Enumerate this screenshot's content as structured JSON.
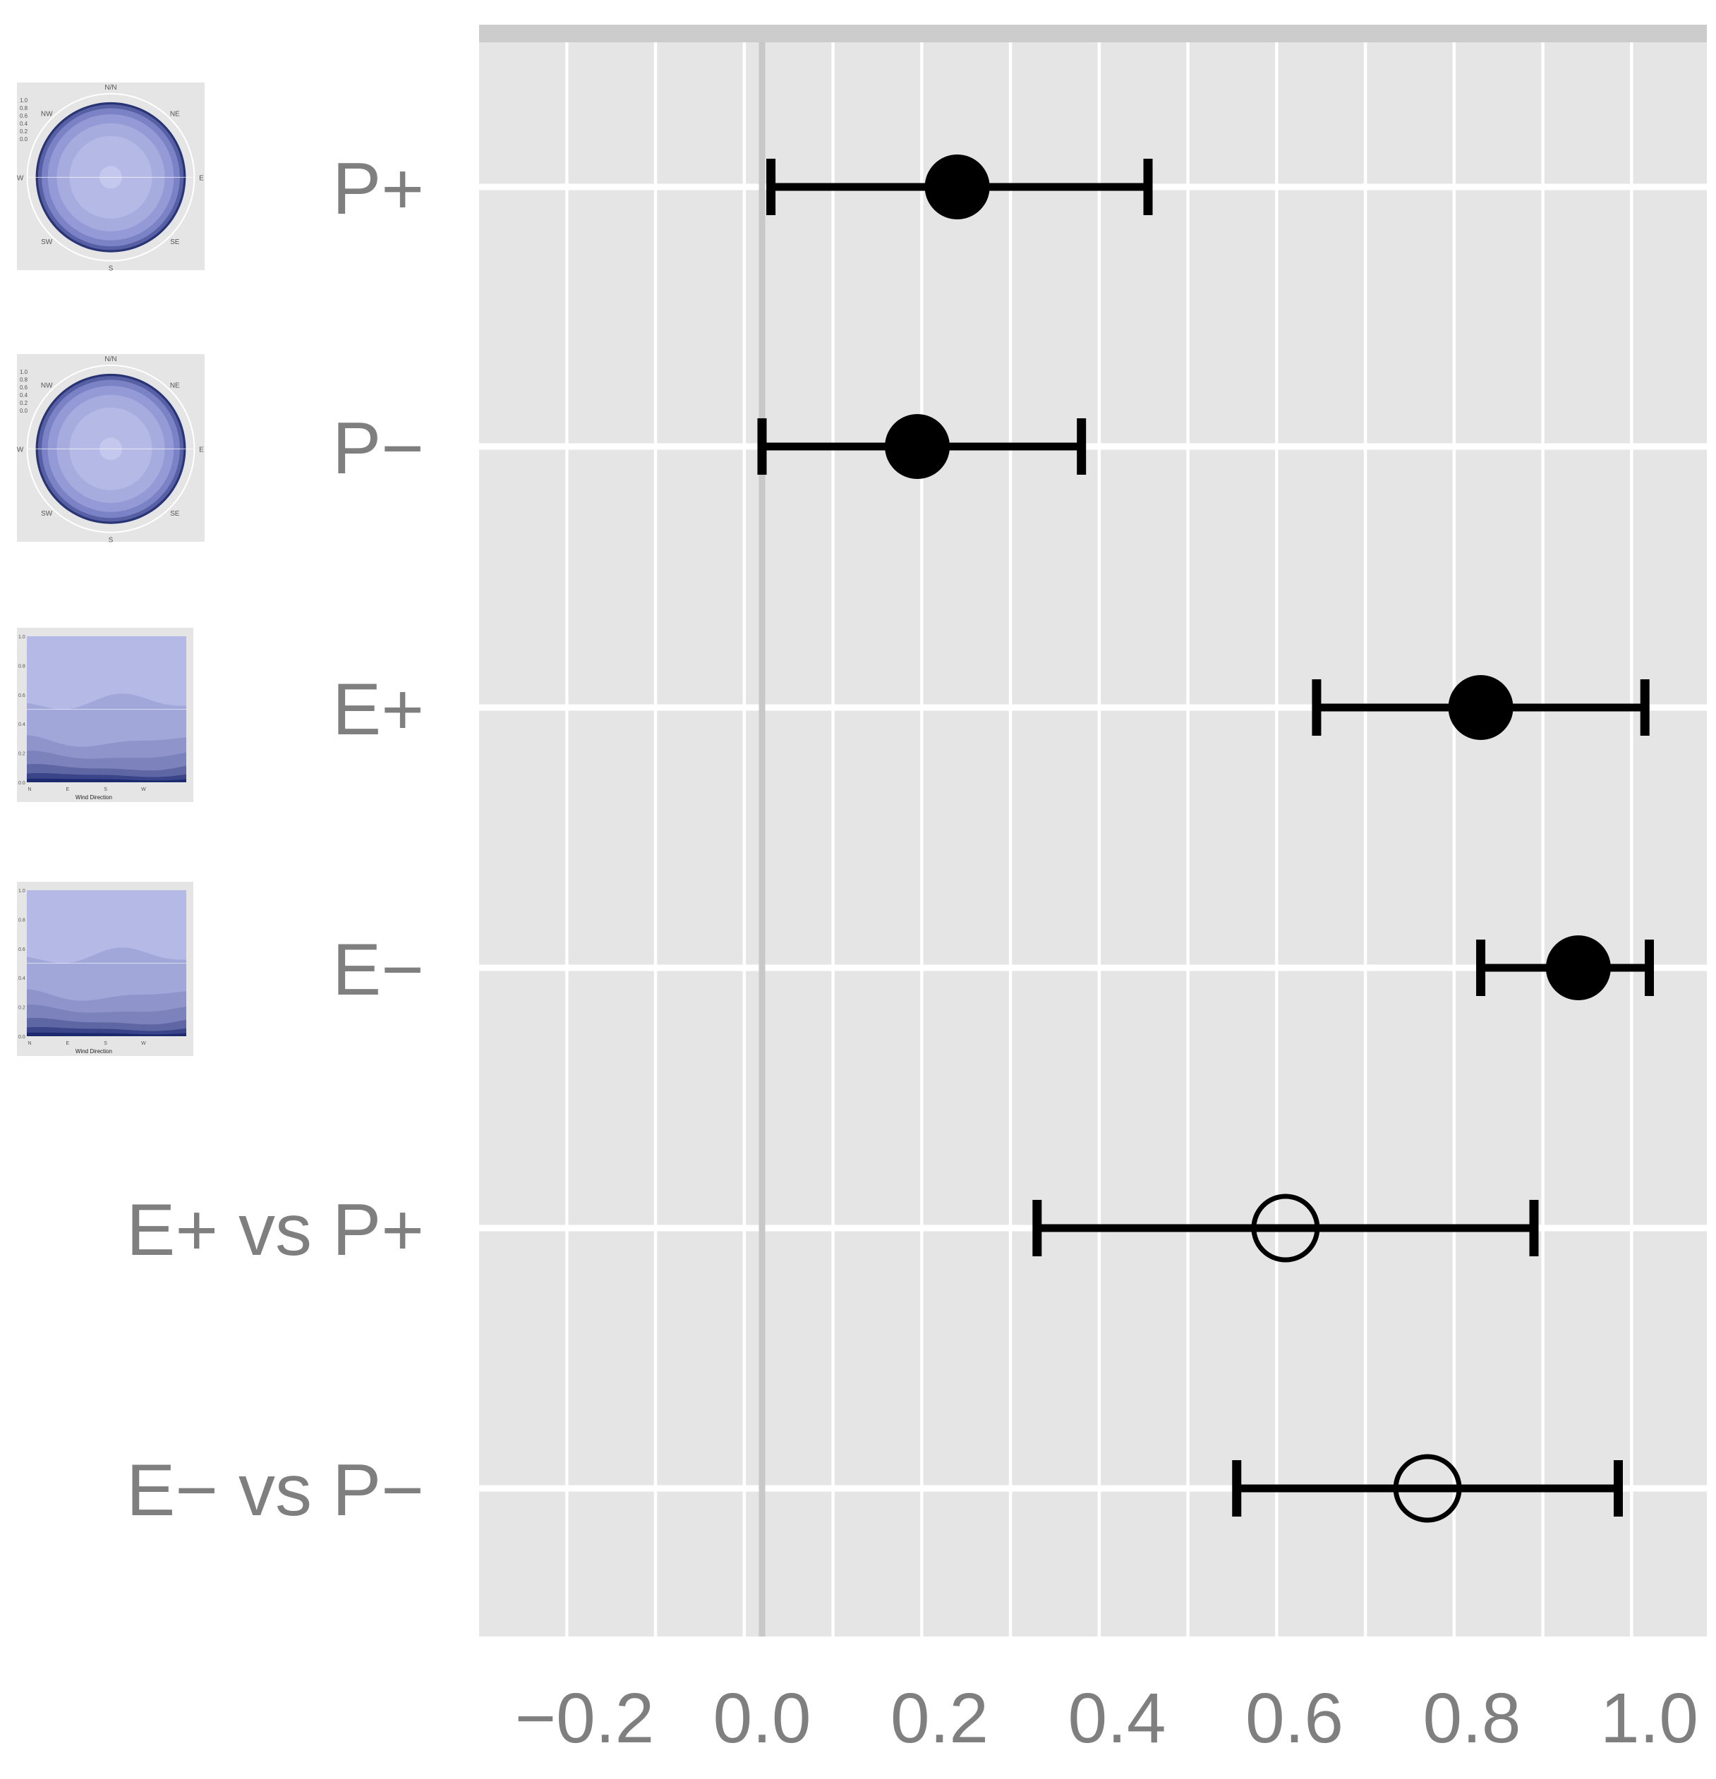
{
  "chart_data": {
    "type": "scatter",
    "subtype": "point-range",
    "title": "",
    "xlabel": "",
    "ylabel": "",
    "xlim": [
      -0.32,
      1.06
    ],
    "x_ticks": [
      -0.2,
      0.0,
      0.2,
      0.4,
      0.6,
      0.8,
      1.0
    ],
    "x_tick_labels": [
      "−0.2",
      "0.0",
      "0.2",
      "0.4",
      "0.6",
      "0.8",
      "1.0"
    ],
    "reference_line_x": 0.0,
    "grid": true,
    "legend": "none",
    "categories": [
      "P+",
      "P−",
      "E+",
      "E−",
      "E+ vs P+",
      "E− vs P−"
    ],
    "points": [
      {
        "label": "P+",
        "estimate": 0.22,
        "low": 0.01,
        "high": 0.435,
        "marker": "filled",
        "thumbnail": "polar-wind-rose"
      },
      {
        "label": "P−",
        "estimate": 0.175,
        "low": 0.0,
        "high": 0.36,
        "marker": "filled",
        "thumbnail": "polar-wind-rose"
      },
      {
        "label": "E+",
        "estimate": 0.81,
        "low": 0.625,
        "high": 0.995,
        "marker": "filled",
        "thumbnail": "stacked-area-wind-direction"
      },
      {
        "label": "E−",
        "estimate": 0.92,
        "low": 0.81,
        "high": 1.0,
        "marker": "filled",
        "thumbnail": "stacked-area-wind-direction"
      },
      {
        "label": "E+ vs P+",
        "estimate": 0.59,
        "low": 0.31,
        "high": 0.87,
        "marker": "hollow"
      },
      {
        "label": "E− vs P−",
        "estimate": 0.75,
        "low": 0.535,
        "high": 0.965,
        "marker": "hollow"
      }
    ],
    "colors": {
      "panel": "#e5e5e5",
      "strip": "#cccccc",
      "grid_major": "#ffffff",
      "reference_line": "#c8c8c8",
      "marks": "#000000",
      "labels": "#7f7f7f",
      "thumb_fill": "#b4b9e6",
      "thumb_dark": "#1e2a6e"
    }
  },
  "thumbnails": {
    "polar": {
      "compass": [
        "N/N",
        "NE",
        "E",
        "SE",
        "S",
        "SW",
        "W",
        "NW"
      ],
      "radial_ticks": [
        "1.0",
        "0.8",
        "0.6",
        "0.4",
        "0.2",
        "0.0"
      ]
    },
    "area": {
      "xlabel": "Wind Direction",
      "x_ticks": [
        "N",
        "E",
        "S",
        "W"
      ],
      "y_ticks": [
        "1.0",
        "0.8",
        "0.6",
        "0.4",
        "0.2",
        "0.0"
      ]
    }
  }
}
